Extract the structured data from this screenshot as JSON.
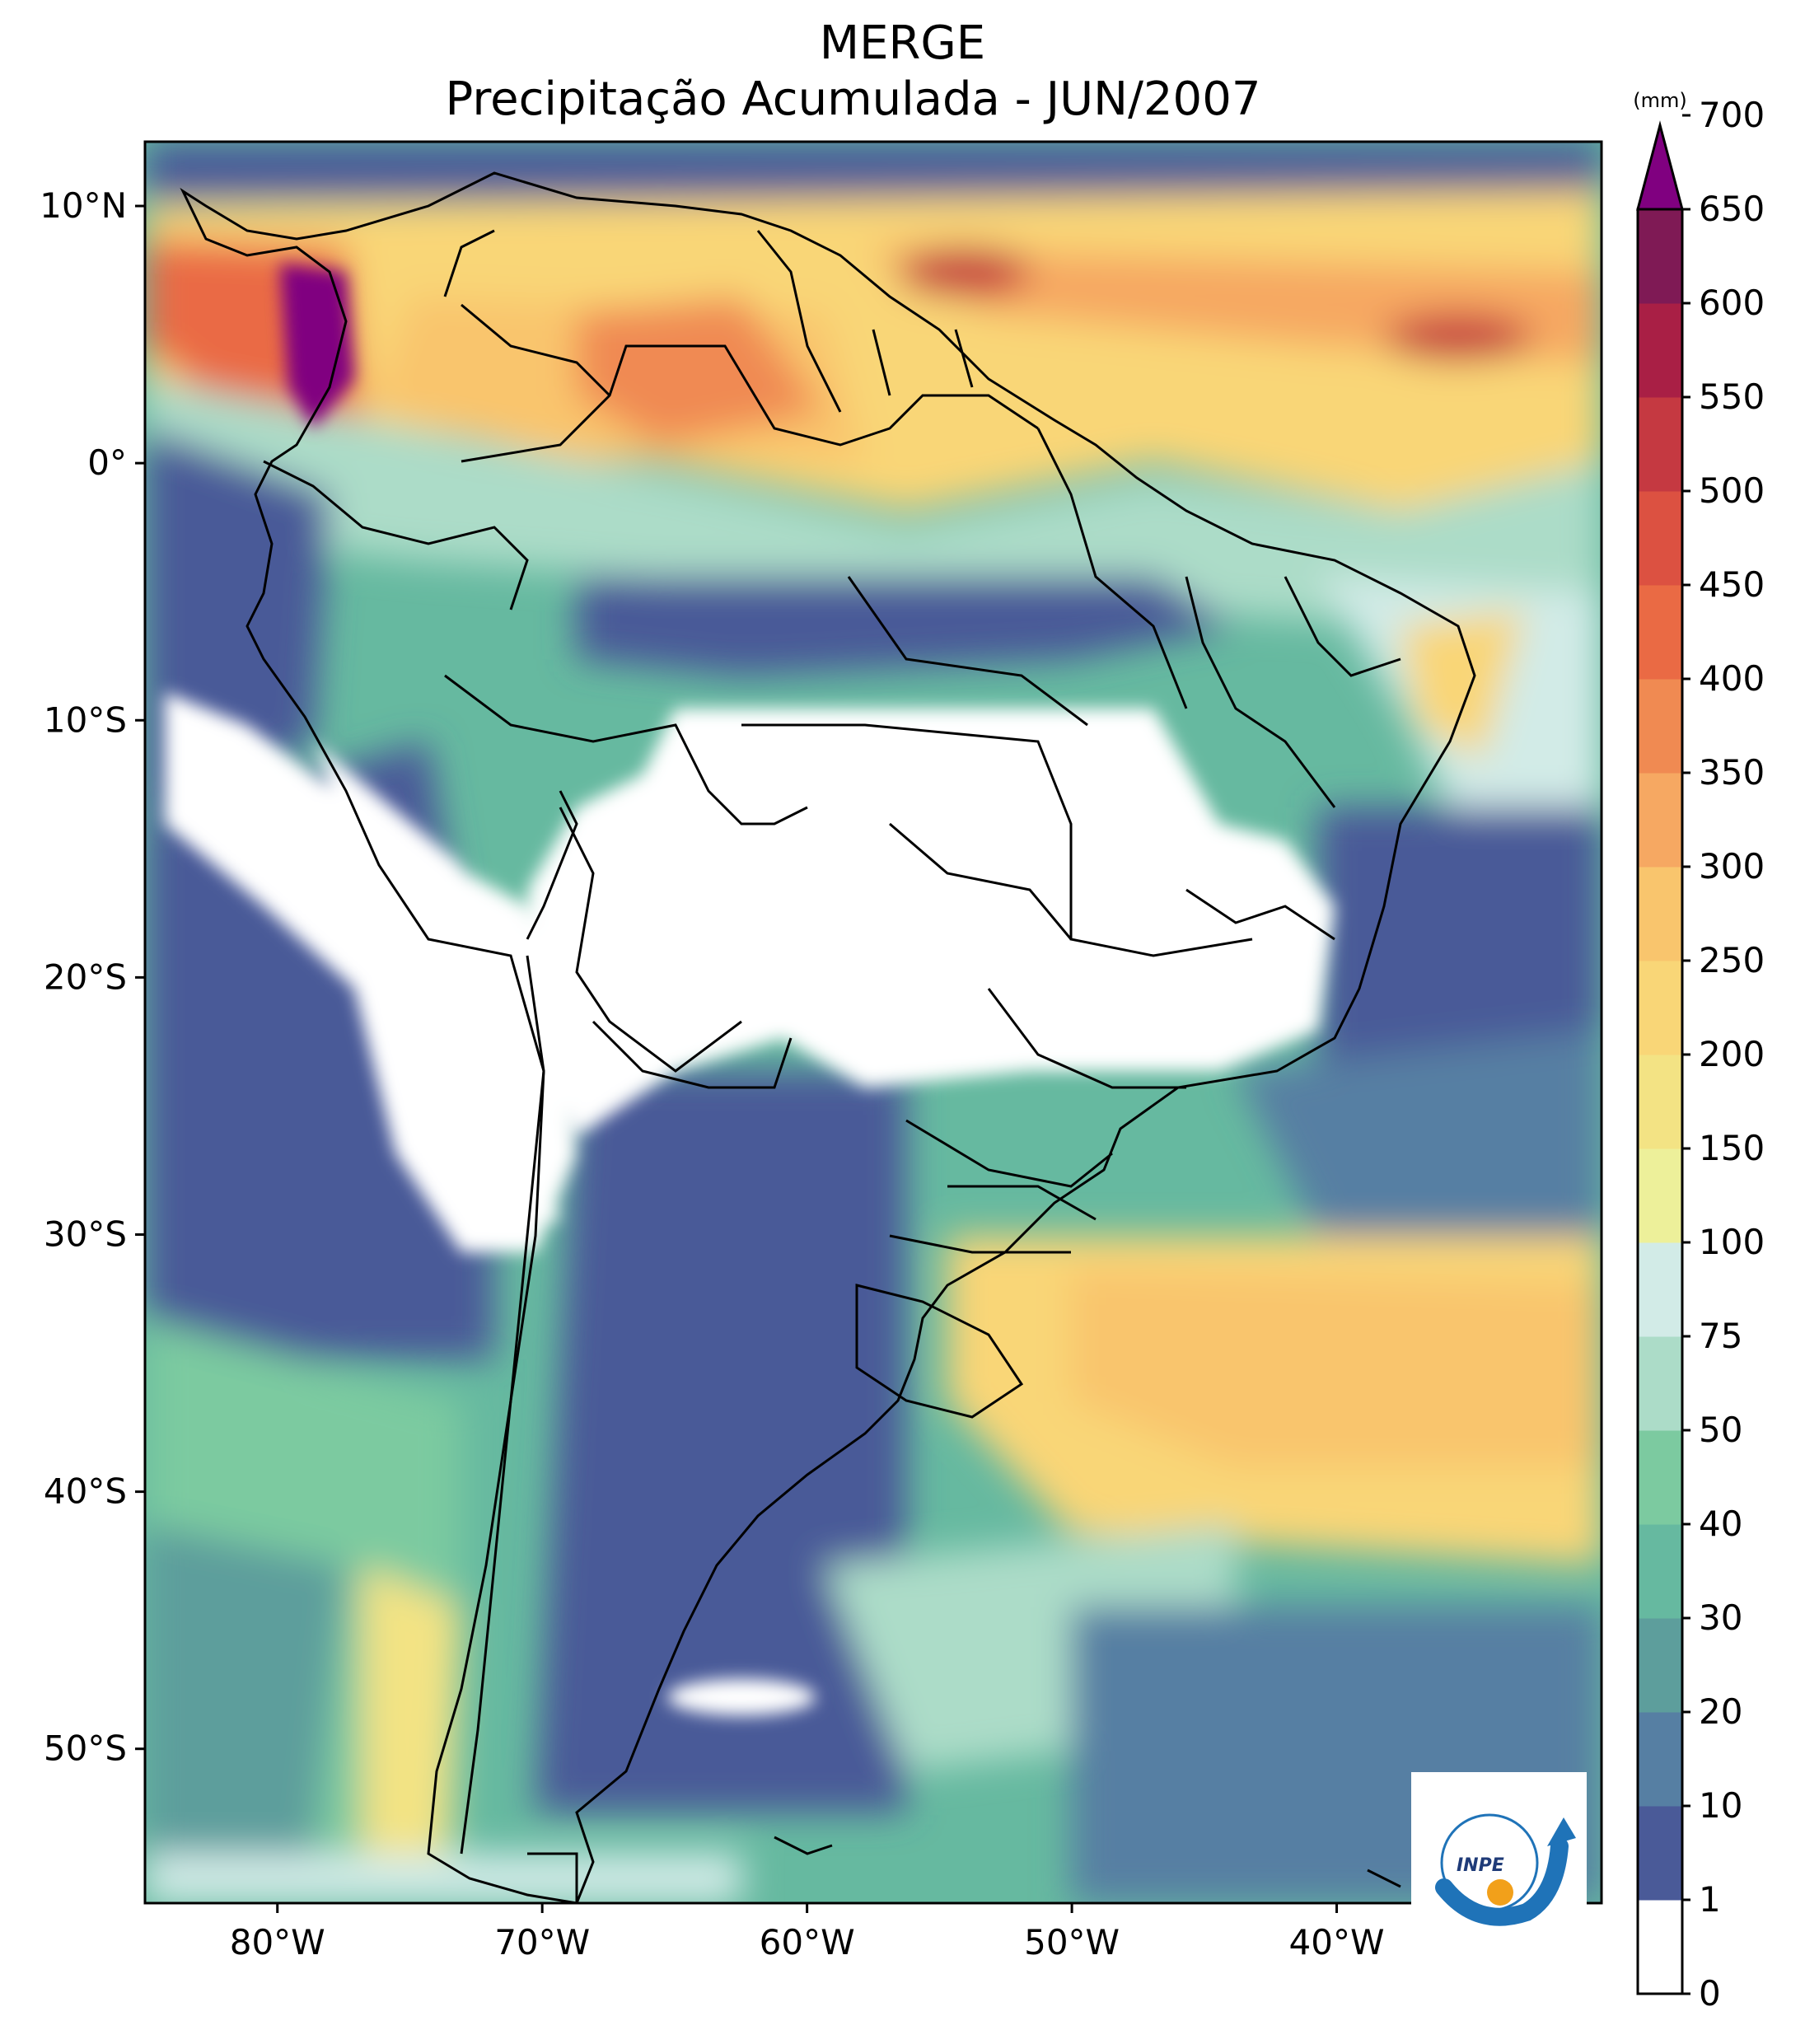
{
  "title": {
    "line1": "MERGE",
    "line2": "Precipitação Acumulada - JUN/2007"
  },
  "map": {
    "lon_range": [
      -85,
      -30
    ],
    "lat_range": [
      -56,
      12.5
    ],
    "lat_ticks": [
      {
        "value": 10,
        "label": "10°N"
      },
      {
        "value": 0,
        "label": "0°"
      },
      {
        "value": -10,
        "label": "10°S"
      },
      {
        "value": -20,
        "label": "20°S"
      },
      {
        "value": -30,
        "label": "30°S"
      },
      {
        "value": -40,
        "label": "40°S"
      },
      {
        "value": -50,
        "label": "50°S"
      }
    ],
    "lon_ticks": [
      {
        "value": -80,
        "label": "80°W"
      },
      {
        "value": -70,
        "label": "70°W"
      },
      {
        "value": -60,
        "label": "60°W"
      },
      {
        "value": -50,
        "label": "50°W"
      },
      {
        "value": -40,
        "label": "40°W"
      }
    ]
  },
  "colorbar": {
    "unit": "(mm)",
    "levels": [
      "0",
      "1",
      "10",
      "20",
      "30",
      "40",
      "50",
      "75",
      "100",
      "150",
      "200",
      "250",
      "300",
      "350",
      "400",
      "450",
      "500",
      "550",
      "600",
      "650",
      "700"
    ],
    "colors": [
      "#ffffff",
      "#4a5a98",
      "#567fa3",
      "#5d9e9c",
      "#66b9a0",
      "#7ccaa0",
      "#acdcc8",
      "#d2ebe7",
      "#edf09a",
      "#f3e384",
      "#f9d677",
      "#f9c56d",
      "#f6a862",
      "#f08a52",
      "#ea6a44",
      "#dc5141",
      "#c53941",
      "#a91f45",
      "#7f1a55"
    ],
    "extend_color": "#800080"
  },
  "logo": {
    "text": "INPE"
  }
}
